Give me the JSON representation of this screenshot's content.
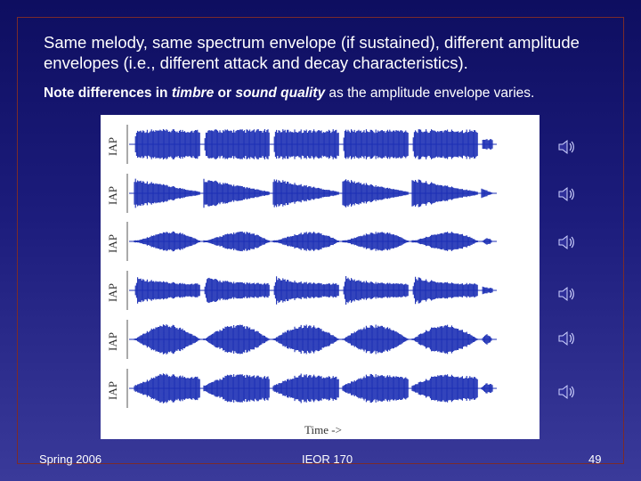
{
  "slide": {
    "heading": "Same melody, same spectrum envelope (if sustained), different amplitude envelopes (i.e., different attack and decay characteristics).",
    "note": {
      "part1": "Note differences in ",
      "italic1": "timbre",
      "part2": " or ",
      "italic2": "sound quality",
      "part3": " as the amplitude envelope varies."
    },
    "footer": {
      "left": "Spring 2006",
      "center": "IEOR 170",
      "right": "49"
    }
  },
  "figure": {
    "ylabel": "IAP",
    "xlabel": "Time ->",
    "waveform_color": "#1c2fb4",
    "rows": 6,
    "envelope_types": [
      "sustained",
      "decay",
      "swell",
      "attack-decay",
      "bell",
      "attack-sustain"
    ]
  },
  "icons": [
    "speaker-icon",
    "speaker-icon",
    "speaker-icon",
    "speaker-icon",
    "speaker-icon",
    "speaker-icon"
  ],
  "colors": {
    "background_top": "#0e0e60",
    "background_bottom": "#3a3a9a",
    "text": "#ffffff",
    "waveform": "#1c2fb4"
  }
}
